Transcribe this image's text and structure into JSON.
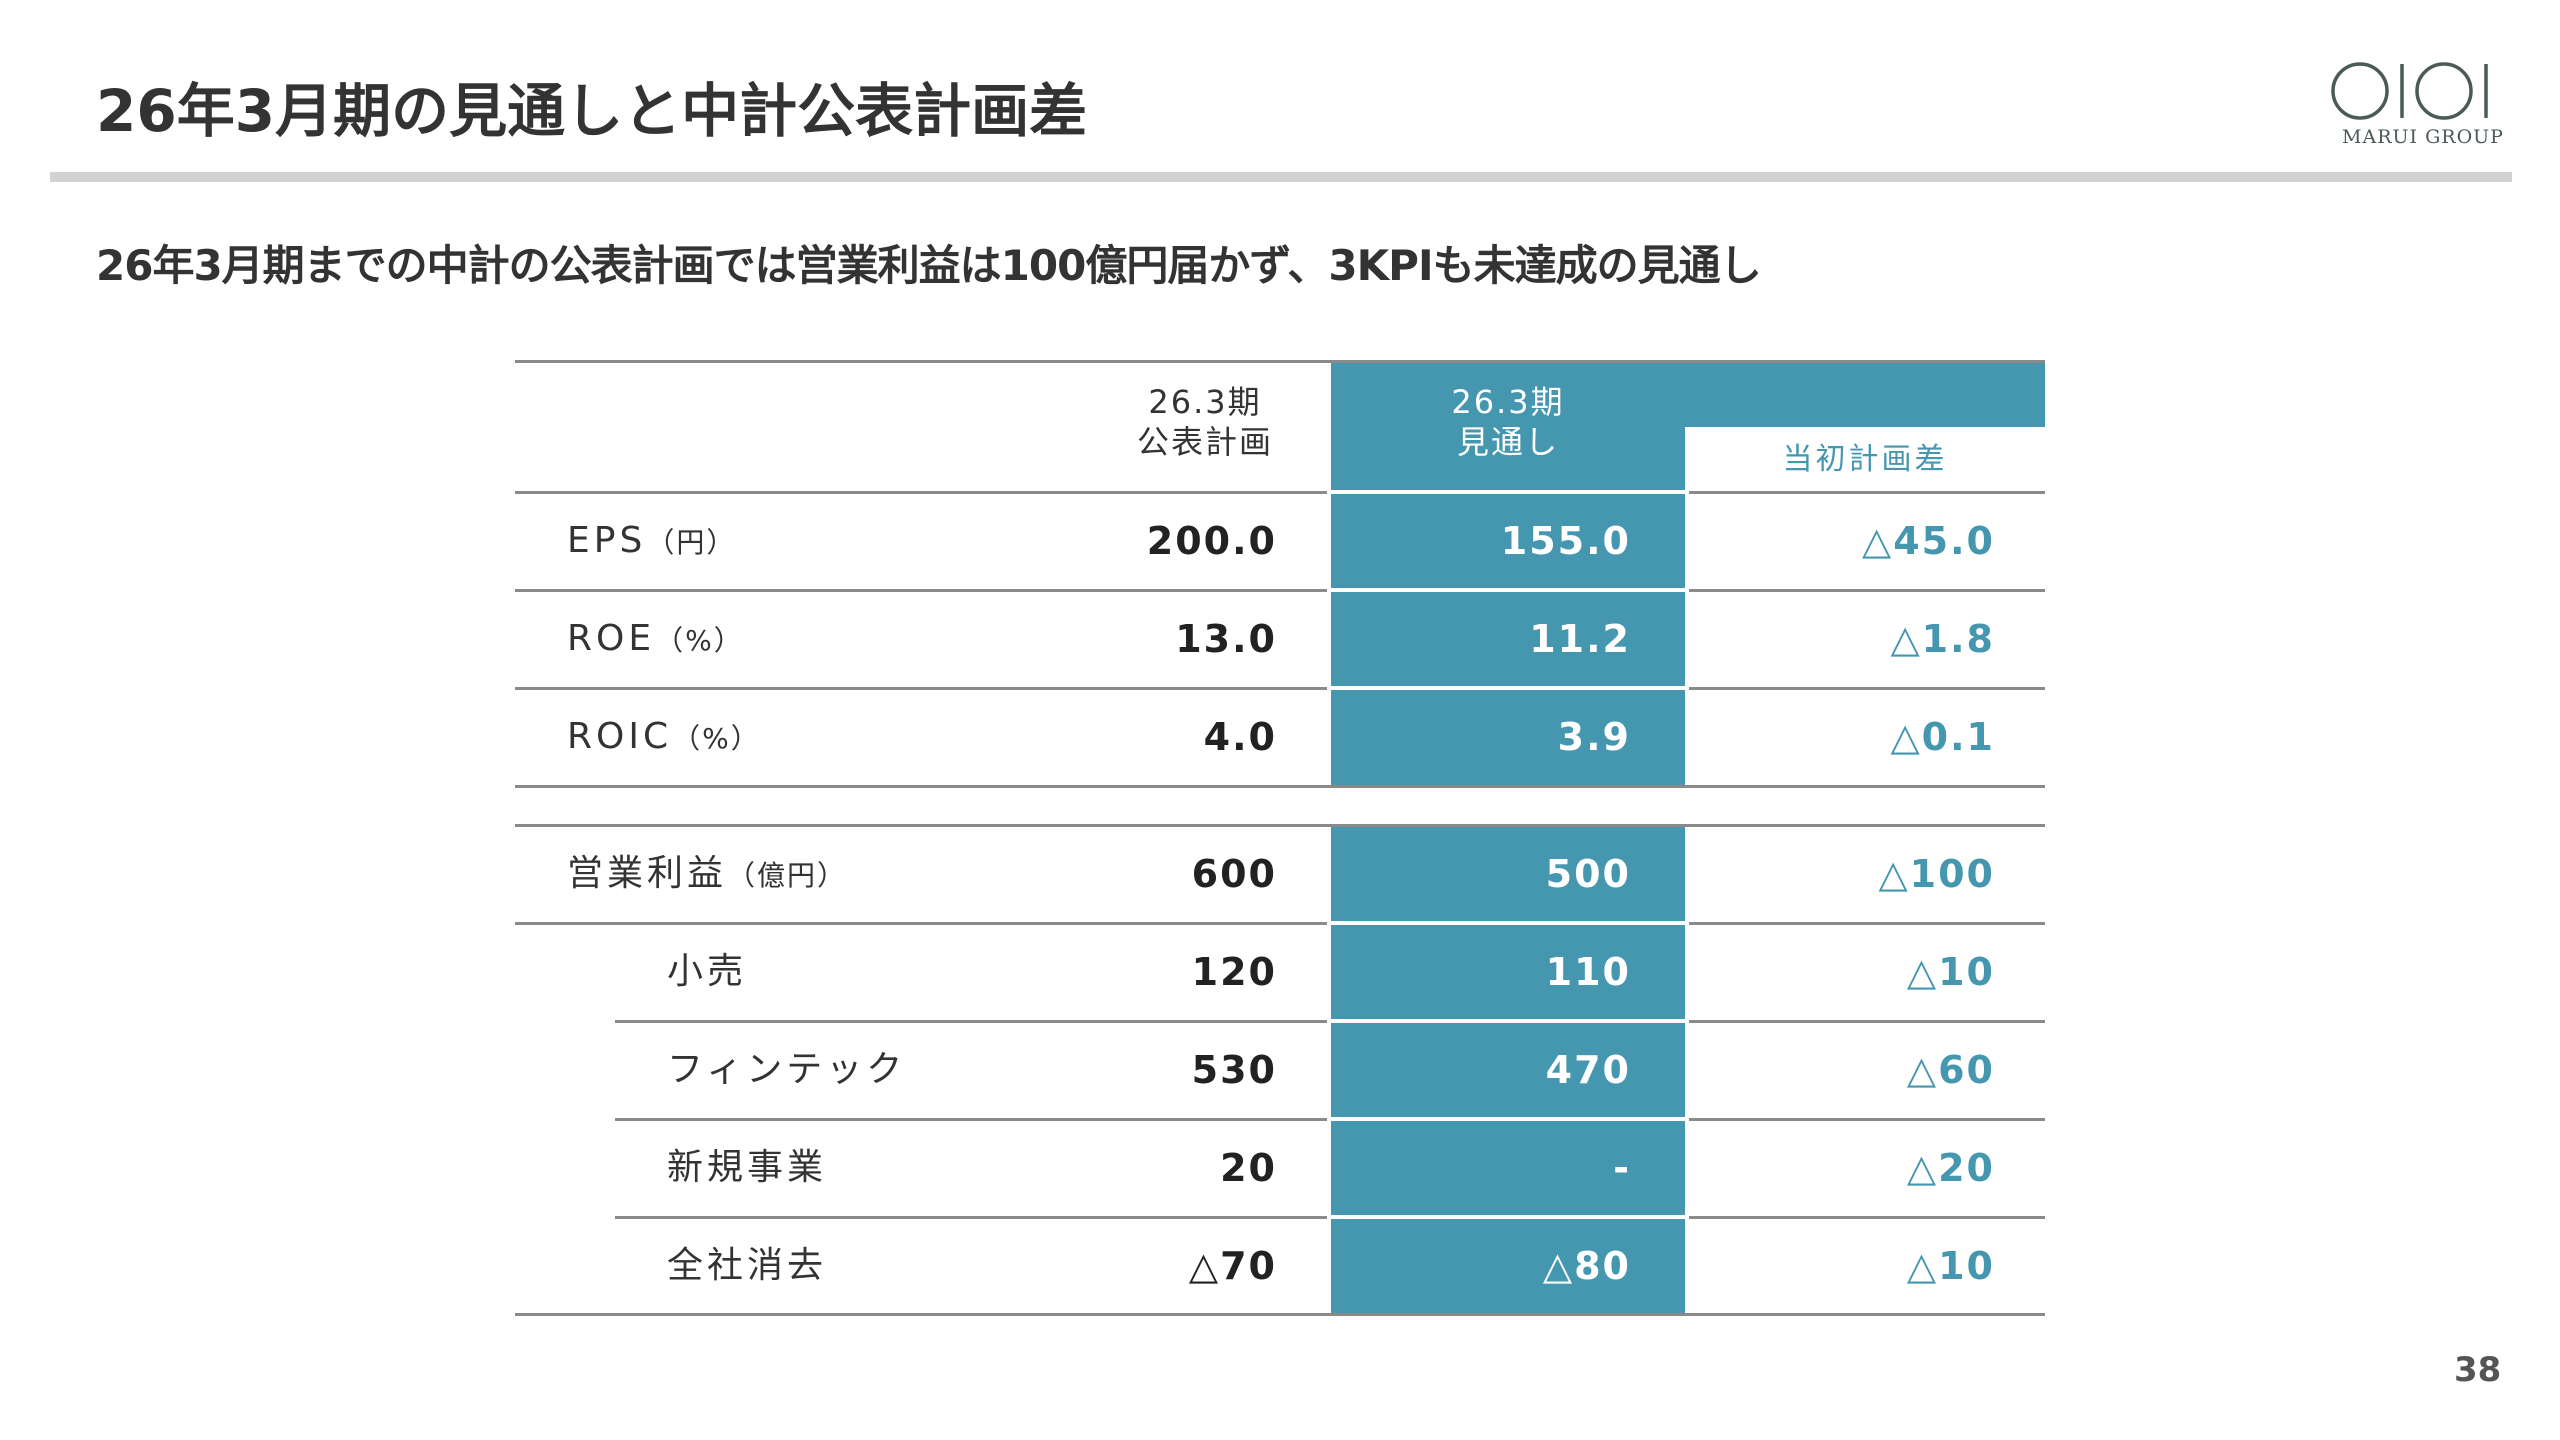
{
  "header": {
    "title": "26年3月期の見通しと中計公表計画差",
    "subtitle": "26年3月期までの中計の公表計画では営業利益は100億円届かず、3KPIも未達成の見通し"
  },
  "logo": {
    "mark": "OIOI",
    "text": "MARUI GROUP"
  },
  "colors": {
    "accent": "#4597b0",
    "text": "#333333",
    "rule": "#d2d2d4"
  },
  "table": {
    "columns": {
      "plan_line1": "26.3期",
      "plan_line2": "公表計画",
      "forecast_line1": "26.3期",
      "forecast_line2": "見通し",
      "diff": "当初計画差"
    },
    "kpi_rows": [
      {
        "label": "EPS",
        "unit": "（円）",
        "plan": "200.0",
        "forecast": "155.0",
        "diff": "△45.0"
      },
      {
        "label": "ROE",
        "unit": "（%）",
        "plan": "13.0",
        "forecast": "11.2",
        "diff": "△1.8"
      },
      {
        "label": "ROIC",
        "unit": "（%）",
        "plan": "4.0",
        "forecast": "3.9",
        "diff": "△0.1"
      }
    ],
    "profit_rows": [
      {
        "label": "営業利益",
        "unit": "（億円）",
        "plan": "600",
        "forecast": "500",
        "diff": "△100"
      },
      {
        "label": "小売",
        "unit": "",
        "plan": "120",
        "forecast": "110",
        "diff": "△10"
      },
      {
        "label": "フィンテック",
        "unit": "",
        "plan": "530",
        "forecast": "470",
        "diff": "△60"
      },
      {
        "label": "新規事業",
        "unit": "",
        "plan": "20",
        "forecast": "-",
        "diff": "△20"
      },
      {
        "label": "全社消去",
        "unit": "",
        "plan": "△70",
        "forecast": "△80",
        "diff": "△10"
      }
    ]
  },
  "footer": {
    "page_number": "38"
  }
}
